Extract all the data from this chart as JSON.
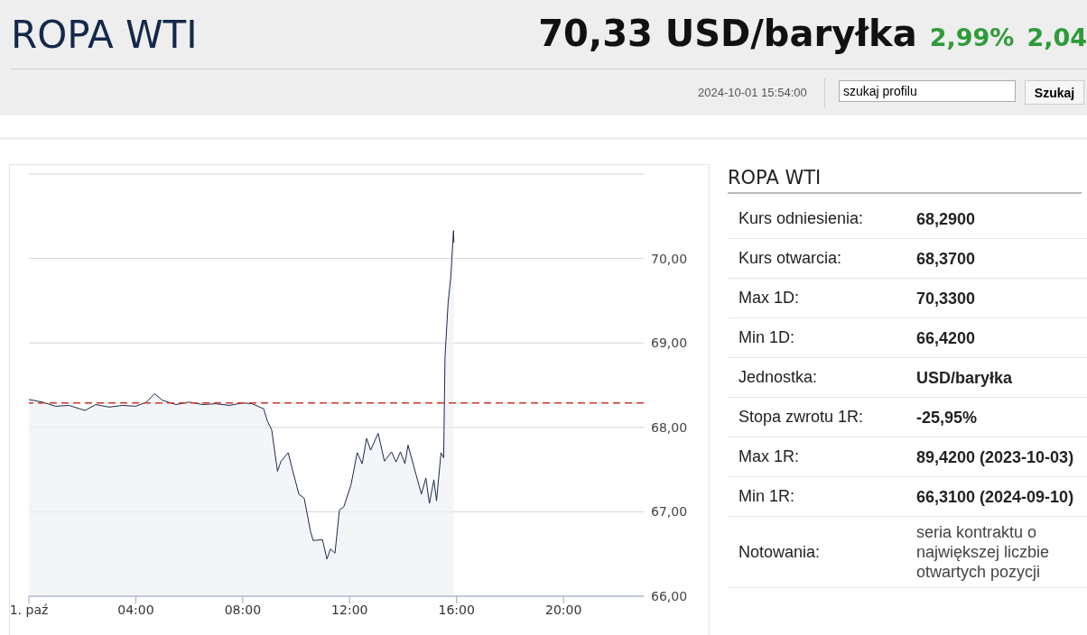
{
  "chart_data": {
    "type": "area",
    "title": "ROPA WTI",
    "annotations": [
      "70,33 USD/baryłka",
      "2,99%",
      "2,04",
      "2024-10-01 15:54:00",
      "szukaj profilu",
      "Szukaj",
      "ROPA WTI",
      "Kurs odniesienia:",
      "68,2900",
      "Kurs otwarcia:",
      "68,3700",
      "Max 1D:",
      "70,3300",
      "Min 1D:",
      "66,4200",
      "Jednostka:",
      "USD/baryłka",
      "Stopa zwrotu 1R:",
      "-25,95%",
      "Max 1R:",
      "89,4200 (2023-10-03)",
      "Min 1R:",
      "66,3100 (2024-09-10)",
      "Notowania:",
      "seria kontraktu o największej liczbie otwartych pozycji"
    ],
    "x": [
      "2024-10-01T00:00",
      "2024-10-01T00:30",
      "2024-10-01T01:00",
      "2024-10-01T01:30",
      "2024-10-01T02:06",
      "2024-10-01T02:30",
      "2024-10-01T03:00",
      "2024-10-01T03:30",
      "2024-10-01T04:00",
      "2024-10-01T04:24",
      "2024-10-01T04:42",
      "2024-10-01T05:00",
      "2024-10-01T05:30",
      "2024-10-01T06:00",
      "2024-10-01T06:30",
      "2024-10-01T07:00",
      "2024-10-01T07:30",
      "2024-10-01T08:00",
      "2024-10-01T08:21",
      "2024-10-01T08:47",
      "2024-10-01T08:55",
      "2024-10-01T09:05",
      "2024-10-01T09:18",
      "2024-10-01T09:26",
      "2024-10-01T09:42",
      "2024-10-01T09:52",
      "2024-10-01T10:06",
      "2024-10-01T10:18",
      "2024-10-01T10:32",
      "2024-10-01T10:38",
      "2024-10-01T10:59",
      "2024-10-01T11:09",
      "2024-10-01T11:17",
      "2024-10-01T11:27",
      "2024-10-01T11:37",
      "2024-10-01T11:47",
      "2024-10-01T12:03",
      "2024-10-01T12:17",
      "2024-10-01T12:28",
      "2024-10-01T12:38",
      "2024-10-01T12:47",
      "2024-10-01T13:04",
      "2024-10-01T13:18",
      "2024-10-01T13:34",
      "2024-10-01T13:44",
      "2024-10-01T13:54",
      "2024-10-01T14:04",
      "2024-10-01T14:11",
      "2024-10-01T14:29",
      "2024-10-01T14:41",
      "2024-10-01T14:51",
      "2024-10-01T14:59",
      "2024-10-01T15:09",
      "2024-10-01T15:15",
      "2024-10-01T15:25",
      "2024-10-01T15:31",
      "2024-10-01T15:34",
      "2024-10-01T15:41",
      "2024-10-01T15:47",
      "2024-10-01T15:53",
      "2024-10-01T15:54"
    ],
    "series": [
      {
        "color": "#1b2a48",
        "values": [
          68.33,
          68.3,
          68.25,
          68.26,
          68.2,
          68.27,
          68.24,
          68.26,
          68.25,
          68.3,
          68.4,
          68.32,
          68.27,
          68.3,
          68.27,
          68.28,
          68.26,
          68.29,
          68.28,
          68.22,
          68.08,
          67.97,
          67.48,
          67.6,
          67.7,
          67.49,
          67.21,
          67.16,
          66.77,
          66.66,
          66.67,
          66.44,
          66.56,
          66.51,
          67.02,
          67.06,
          67.32,
          67.7,
          67.57,
          67.87,
          67.73,
          67.93,
          67.6,
          67.71,
          67.59,
          67.71,
          67.57,
          67.79,
          67.44,
          67.21,
          67.4,
          67.1,
          67.38,
          67.13,
          67.7,
          67.64,
          68.84,
          69.48,
          69.78,
          70.33,
          70.19
        ]
      }
    ],
    "xlim": [
      "2024-10-01T00:00",
      "2024-10-01T23:00"
    ],
    "xticks": [
      {
        "value": "2024-10-01T00:00",
        "label": "1. paź"
      },
      {
        "value": "2024-10-01T04:00",
        "label": "04:00"
      },
      {
        "value": "2024-10-01T08:00",
        "label": "08:00"
      },
      {
        "value": "2024-10-01T12:00",
        "label": "12:00"
      },
      {
        "value": "2024-10-01T16:00",
        "label": "16:00"
      },
      {
        "value": "2024-10-01T20:00",
        "label": "20:00"
      }
    ],
    "ylim": [
      66,
      71
    ],
    "yticks": [
      {
        "value": 66,
        "label": "66,00"
      },
      {
        "value": 67,
        "label": "67,00"
      },
      {
        "value": 68,
        "label": "68,00"
      },
      {
        "value": 69,
        "label": "69,00"
      },
      {
        "value": 70,
        "label": "70,00"
      },
      {
        "value": 71,
        "label": null
      }
    ],
    "ref_lines": [
      {
        "axis": "y",
        "value": 68.29,
        "color": "#d0342c",
        "line_style": "dashed"
      }
    ],
    "grid": "y"
  }
}
